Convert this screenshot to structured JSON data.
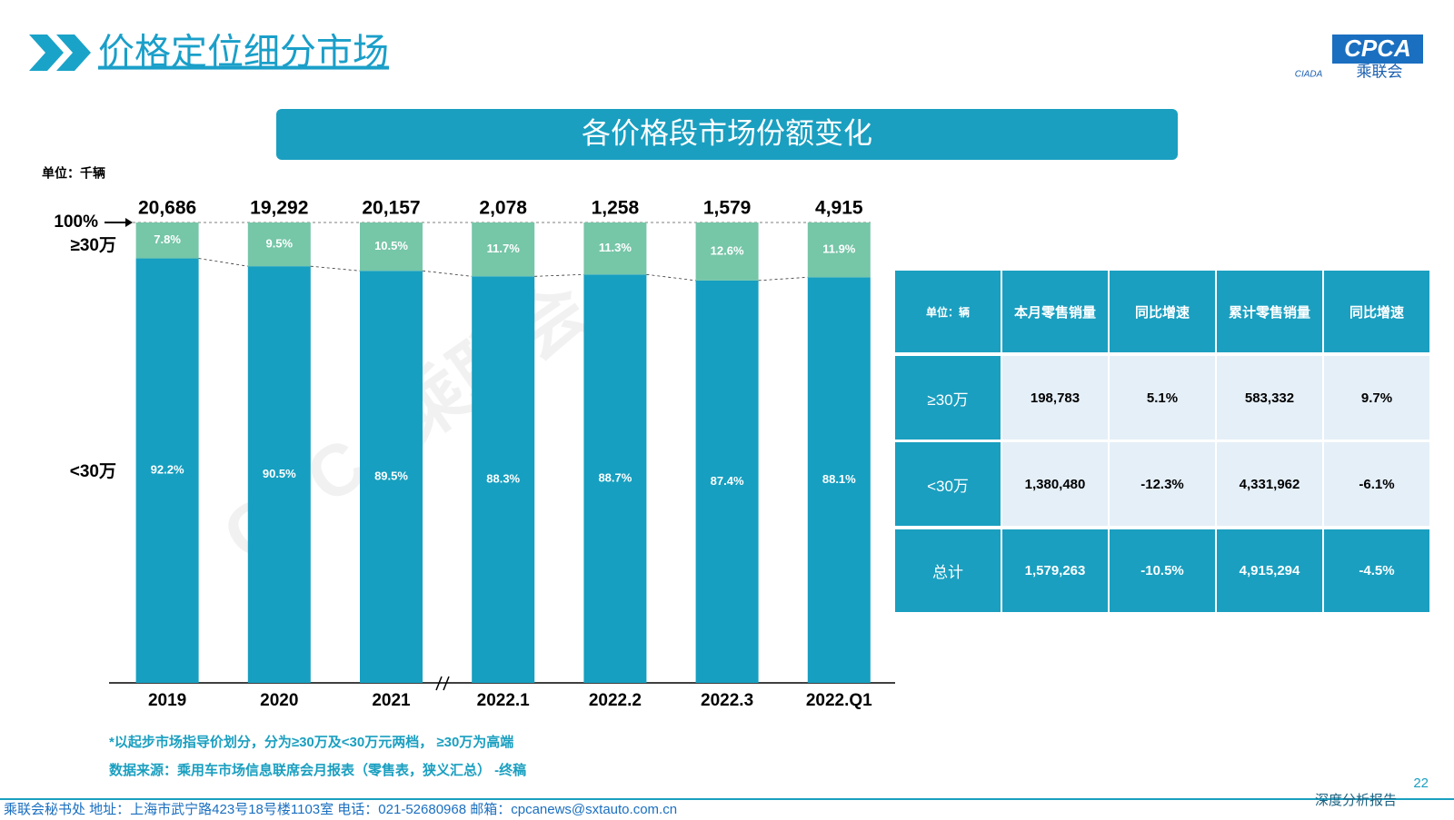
{
  "header": {
    "title": "价格定位细分市场",
    "logo_text": "CPCA",
    "logo_sub": "乘联会",
    "logo_mark": "CIADA"
  },
  "banner": "各价格段市场份额变化",
  "unit": "单位：千辆",
  "watermark": "CPCA乘联会",
  "chart_data": {
    "type": "bar",
    "stacked": true,
    "categories": [
      "2019",
      "2020",
      "2021",
      "2022.1",
      "2022.2",
      "2022.3",
      "2022.Q1"
    ],
    "series": [
      {
        "name": "<30万",
        "color": "#169fc0",
        "values": [
          92.2,
          90.5,
          89.5,
          88.3,
          88.7,
          87.4,
          88.1
        ],
        "value_labels": [
          "92.2%",
          "90.5%",
          "89.5%",
          "88.3%",
          "88.7%",
          "87.4%",
          "88.1%"
        ]
      },
      {
        "name": "≥30万",
        "color": "#76c6a8",
        "values": [
          7.8,
          9.5,
          10.5,
          11.7,
          11.3,
          12.6,
          11.9
        ],
        "value_labels": [
          "7.8%",
          "9.5%",
          "10.5%",
          "11.7%",
          "11.3%",
          "12.6%",
          "11.9%"
        ]
      }
    ],
    "totals": {
      "values": [
        20686,
        19292,
        20157,
        2078,
        1258,
        1579,
        4915
      ],
      "value_labels": [
        "20,686",
        "19,292",
        "20,157",
        "2,078",
        "1,258",
        "1,579",
        "4,915"
      ]
    },
    "ylim": [
      0,
      100
    ],
    "yticks": [
      {
        "value": 100,
        "label": "100%"
      }
    ]
  },
  "table": {
    "header": [
      "单位：辆",
      "本月零售销量",
      "同比增速",
      "累计零售销量",
      "同比增速"
    ],
    "rows": [
      [
        "≥30万",
        "198,783",
        "5.1%",
        "583,332",
        "9.7%"
      ],
      [
        "<30万",
        "1,380,480",
        "-12.3%",
        "4,331,962",
        "-6.1%"
      ],
      [
        "总计",
        "1,579,263",
        "-10.5%",
        "4,915,294",
        "-4.5%"
      ]
    ]
  },
  "notes": [
    "*以起步市场指导价划分，分为≥30万及<30万元两档， ≥30万为高端",
    "数据来源：乘用车市场信息联席会月报表（零售表，狭义汇总） -终稿"
  ],
  "footer": {
    "contact": "乘联会秘书处  地址：上海市武宁路423号18号楼1103室  电话：021-52680968  邮箱：cpcanews@sxtauto.com.cn",
    "report": "深度分析报告",
    "page": "22"
  }
}
